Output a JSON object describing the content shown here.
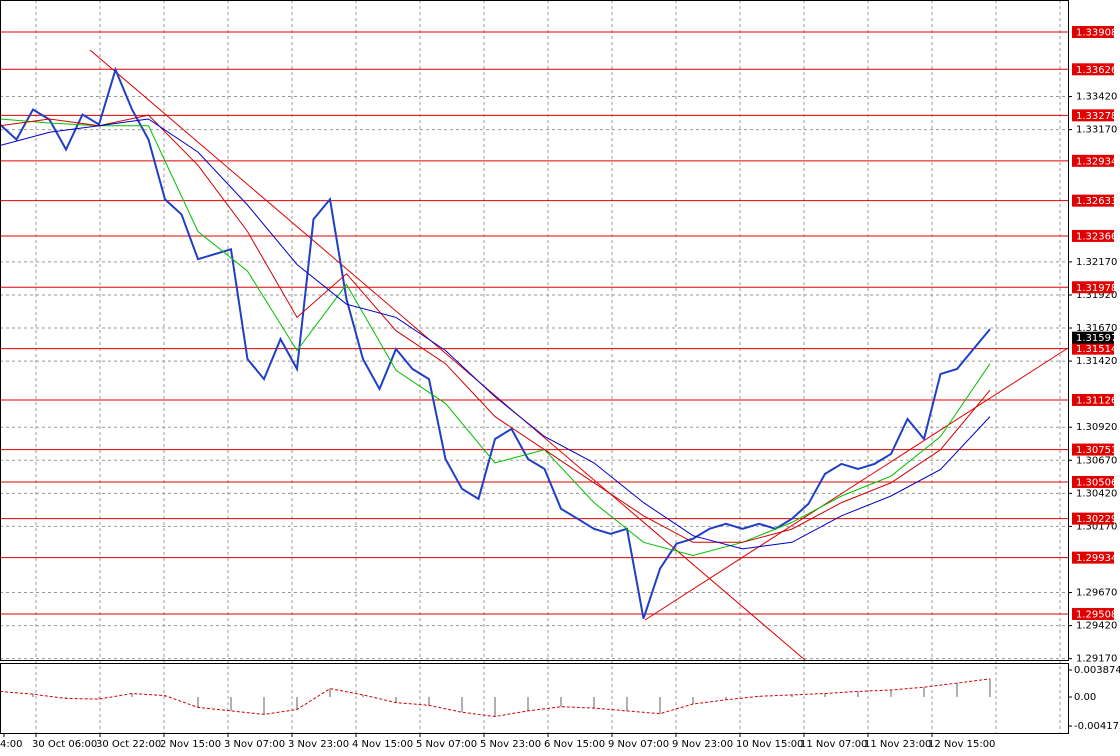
{
  "chart_data": {
    "type": "line",
    "x_labels": [
      "4:00",
      "30 Oct 06:00",
      "30 Oct 22:00",
      "2 Nov 15:00",
      "3 Nov 07:00",
      "3 Nov 23:00",
      "4 Nov 15:00",
      "5 Nov 07:00",
      "5 Nov 23:00",
      "6 Nov 15:00",
      "9 Nov 07:00",
      "9 Nov 23:00",
      "10 Nov 15:00",
      "11 Nov 07:00",
      "11 Nov 23:00",
      "12 Nov 15:00"
    ],
    "ylim": [
      1.2916,
      1.3415
    ],
    "yticks": [
      {
        "value": 1.3342,
        "label": "1.33420"
      },
      {
        "value": 1.3317,
        "label": "1.33170"
      },
      {
        "value": 1.3217,
        "label": "1.32170"
      },
      {
        "value": 1.3192,
        "label": "1.31920"
      },
      {
        "value": 1.3167,
        "label": "1.31670"
      },
      {
        "value": 1.3142,
        "label": "1.31420"
      },
      {
        "value": 1.3092,
        "label": "1.30920"
      },
      {
        "value": 1.3067,
        "label": "1.30670"
      },
      {
        "value": 1.3042,
        "label": "1.30420"
      },
      {
        "value": 1.3017,
        "label": "1.30170"
      },
      {
        "value": 1.2967,
        "label": "1.29670"
      },
      {
        "value": 1.2942,
        "label": "1.29420"
      },
      {
        "value": 1.2917,
        "label": "1.29170"
      }
    ],
    "grid": true,
    "series": [
      {
        "color": "#1f3fc4",
        "width": 2,
        "values": [
          1.33209,
          1.33095,
          1.33322,
          1.33246,
          1.3302,
          1.33284,
          1.33209,
          1.33624,
          1.33322,
          1.33095,
          1.32643,
          1.32529,
          1.3219,
          1.32228,
          1.32265,
          1.31435,
          1.31284,
          1.31586,
          1.3136,
          1.32492,
          1.32643,
          1.31888,
          1.31435,
          1.31209,
          1.31511,
          1.3136,
          1.31284,
          1.3068,
          1.30454,
          1.30378,
          1.30831,
          1.30907,
          1.3068,
          1.30605,
          1.30303,
          1.30228,
          1.30152,
          1.30114,
          1.30152,
          1.29473,
          1.2985,
          1.30039,
          1.30077,
          1.30152,
          1.3019,
          1.30152,
          1.3019,
          1.30152,
          1.30228,
          1.30341,
          1.30567,
          1.30643,
          1.30605,
          1.30643,
          1.30718,
          1.30982,
          1.30831,
          1.31322,
          1.3136,
          1.31511,
          1.31662
        ]
      },
      {
        "color": "#00c000",
        "width": 1,
        "values": [
          1.3325,
          1.3322,
          1.332,
          1.332,
          1.324,
          1.321,
          1.315,
          1.32,
          1.3135,
          1.311,
          1.3065,
          1.3075,
          1.3035,
          1.3005,
          1.2995,
          1.3005,
          1.302,
          1.304,
          1.3055,
          1.3085,
          1.314
        ]
      },
      {
        "color": "#d00000",
        "width": 1,
        "values": [
          1.332,
          1.3325,
          1.332,
          1.3328,
          1.329,
          1.324,
          1.3175,
          1.3208,
          1.3165,
          1.314,
          1.31,
          1.3075,
          1.305,
          1.3025,
          1.3005,
          1.3005,
          1.3015,
          1.3035,
          1.305,
          1.3075,
          1.312
        ]
      },
      {
        "color": "#0000c8",
        "width": 1,
        "values": [
          1.3305,
          1.3315,
          1.332,
          1.3325,
          1.33,
          1.326,
          1.3215,
          1.3185,
          1.3175,
          1.315,
          1.3115,
          1.3085,
          1.3065,
          1.3035,
          1.301,
          1.3,
          1.3005,
          1.3025,
          1.304,
          1.306,
          1.31
        ]
      }
    ],
    "levels": [
      1.33908,
      1.33626,
      1.33278,
      1.32934,
      1.32633,
      1.32366,
      1.31978,
      1.31514,
      1.31126,
      1.30751,
      1.30506,
      1.30229,
      1.29934,
      1.29508
    ],
    "level_color": "#e00000",
    "current_price": 1.31597,
    "indicator": {
      "color": "#d00000",
      "ylim": [
        -0.00517,
        0.00488
      ],
      "yticks": [
        0.003874,
        {
          "value": 0,
          "label": "0.00"
        },
        -0.004175
      ],
      "values": [
        0.0008,
        0.0004,
        -0.0002,
        -0.0003,
        0.0005,
        0.0002,
        -0.0015,
        -0.002,
        -0.0025,
        -0.0018,
        0.0012,
        0.0003,
        -0.0008,
        -0.0012,
        -0.0022,
        -0.0028,
        -0.002,
        -0.0014,
        -0.0016,
        -0.002,
        -0.0024,
        -0.001,
        -0.0004,
        0.0001,
        0.0003,
        0.0005,
        0.0008,
        0.001,
        0.0014,
        0.002,
        0.0026
      ]
    }
  }
}
